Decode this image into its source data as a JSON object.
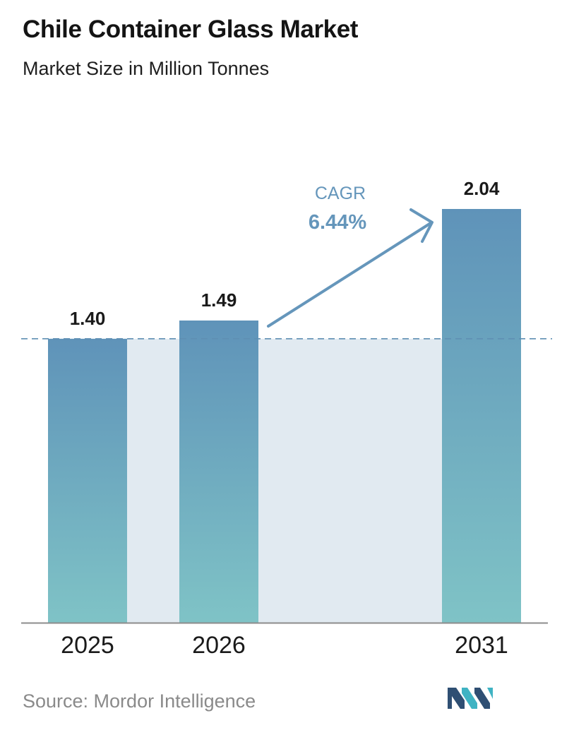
{
  "header": {
    "title": "Chile Container Glass Market",
    "subtitle": "Market Size in Million Tonnes"
  },
  "chart_data": {
    "type": "bar",
    "title": "Chile Container Glass Market",
    "subtitle": "Market Size in Million Tonnes",
    "categories": [
      "2025",
      "2026",
      "2031"
    ],
    "values": [
      1.4,
      1.49,
      2.04
    ],
    "value_labels": [
      "1.40",
      "1.49",
      "2.04"
    ],
    "ylim": [
      0,
      2.04
    ],
    "grid": false,
    "annotation": {
      "label": "CAGR",
      "value": "6.44%"
    },
    "colors": {
      "bar_top": "#5f93b9",
      "bar_bottom": "#7fc3c6",
      "band": "#e1eaf1",
      "reference_line": "#5f8fb3",
      "arrow": "#6596bb",
      "axis": "#8c8c8c"
    }
  },
  "footer": {
    "source": "Source:  Mordor Intelligence",
    "logo_icon": "mordor-intelligence-logo-icon",
    "logo_colors": [
      "#2f4f73",
      "#3fb3c3"
    ]
  }
}
